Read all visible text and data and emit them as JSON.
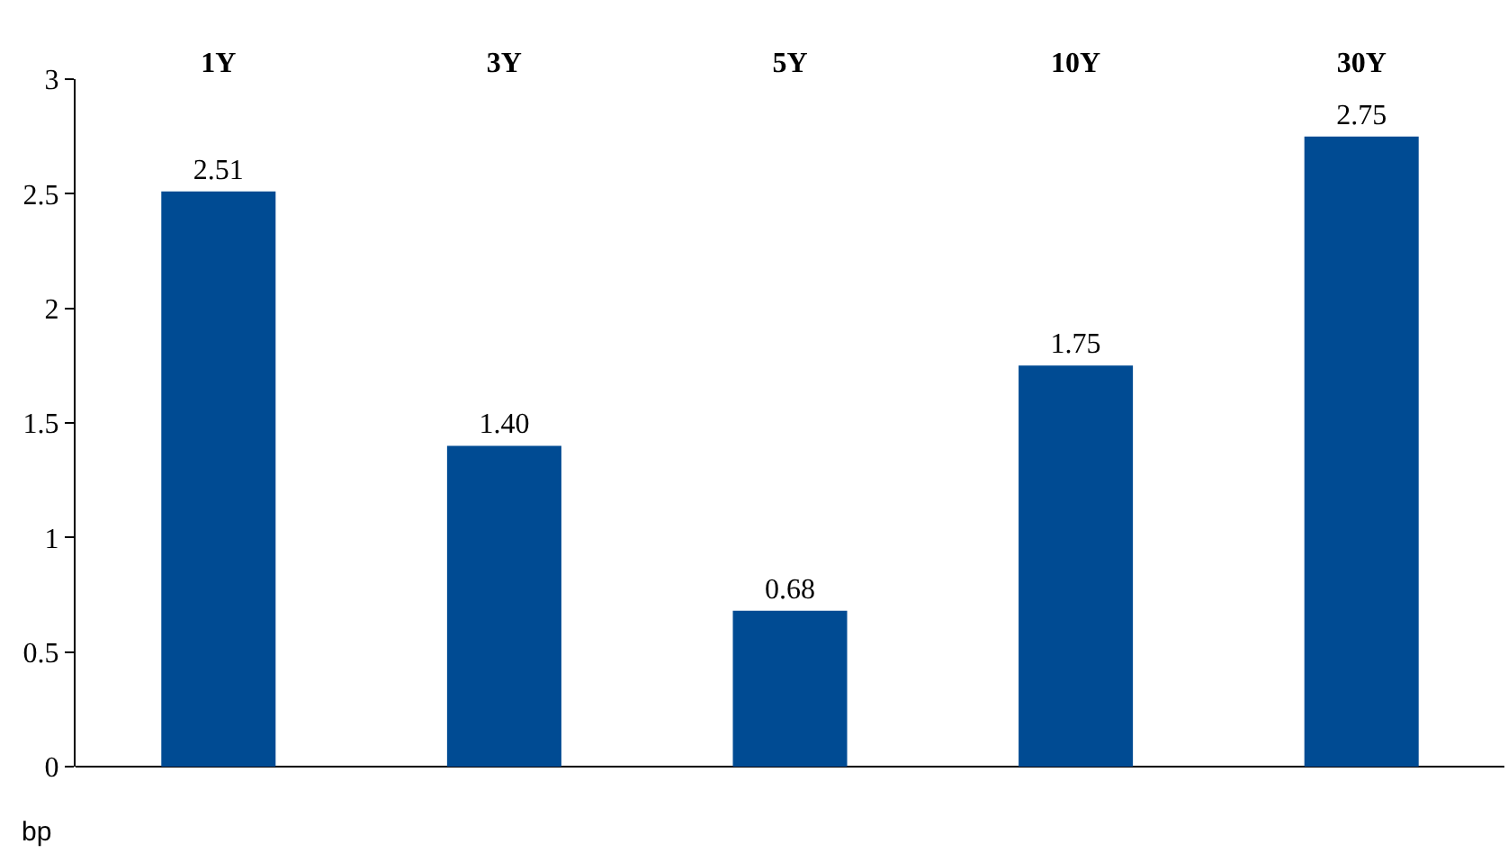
{
  "chart_data": {
    "type": "bar",
    "categories": [
      "1Y",
      "3Y",
      "5Y",
      "10Y",
      "30Y"
    ],
    "values": [
      2.51,
      1.4,
      0.68,
      1.75,
      2.75
    ],
    "value_labels": [
      "2.51",
      "1.40",
      "0.68",
      "1.75",
      "2.75"
    ],
    "color": "#004b93",
    "ylabel": "bp",
    "ylim": [
      0,
      3
    ],
    "yticks": [
      0,
      0.5,
      1,
      1.5,
      2,
      2.5,
      3
    ]
  }
}
